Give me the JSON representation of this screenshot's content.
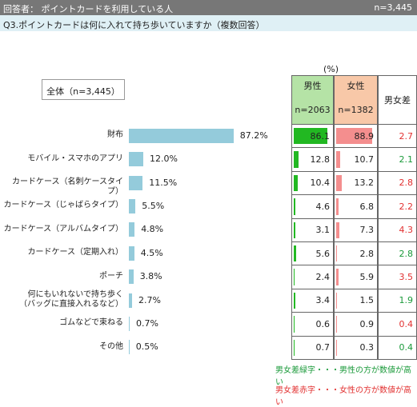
{
  "header": {
    "respondents": "回答者： ポイントカードを利用している人",
    "n": "n=3,445"
  },
  "question": "Q3.ポイントカードは何に入れて持ち歩いていますか（複数回答）",
  "unit": "(%)",
  "total_label": "全体（n=3,445）",
  "table_headers": {
    "male": "男性",
    "male_n": "n=2063",
    "female": "女性",
    "female_n": "n=1382",
    "diff": "男女差"
  },
  "colors": {
    "total_bar": "#94cbdb",
    "male_bar": "#22b822",
    "female_bar": "#f48e8e",
    "diff_green": "#1a9a3a",
    "diff_red": "#e23030"
  },
  "chart_data": {
    "type": "bar",
    "categories": [
      "財布",
      "モバイル・スマホのアプリ",
      "カードケース（名刺ケースタイプ）",
      "カードケース（じゃばらタイプ）",
      "カードケース（アルバムタイプ）",
      "カードケース（定期入れ）",
      "ポーチ",
      "何にもいれないで持ち歩く（バッグに直接入れるなど）",
      "ゴムなどで束ねる",
      "その他"
    ],
    "category_lines": [
      [
        "財布"
      ],
      [
        "モバイル・スマホのアプリ"
      ],
      [
        "カードケース（名刺ケースタイプ）"
      ],
      [
        "カードケース（じゃばらタイプ）"
      ],
      [
        "カードケース（アルバムタイプ）"
      ],
      [
        "カードケース（定期入れ）"
      ],
      [
        "ポーチ"
      ],
      [
        "何にもいれないで持ち歩く",
        "（バッグに直接入れるなど）"
      ],
      [
        "ゴムなどで束ねる"
      ],
      [
        "その他"
      ]
    ],
    "values": [
      87.2,
      12.0,
      11.5,
      5.5,
      4.8,
      4.5,
      3.8,
      2.7,
      0.7,
      0.5
    ],
    "value_labels": [
      "87.2%",
      "12.0%",
      "11.5%",
      "5.5%",
      "4.8%",
      "4.5%",
      "3.8%",
      "2.7%",
      "0.7%",
      "0.5%"
    ],
    "male": [
      86.1,
      12.8,
      10.4,
      4.6,
      3.1,
      5.6,
      2.4,
      3.4,
      0.6,
      0.7
    ],
    "male_labels": [
      "86.1",
      "12.8",
      "10.4",
      "4.6",
      "3.1",
      "5.6",
      "2.4",
      "3.4",
      "0.6",
      "0.7"
    ],
    "female": [
      88.9,
      10.7,
      13.2,
      6.8,
      7.3,
      2.8,
      5.9,
      1.5,
      0.9,
      0.3
    ],
    "female_labels": [
      "88.9",
      "10.7",
      "13.2",
      "6.8",
      "7.3",
      "2.8",
      "5.9",
      "1.5",
      "0.9",
      "0.3"
    ],
    "diff": [
      2.7,
      2.1,
      2.8,
      2.2,
      4.3,
      2.8,
      3.5,
      1.9,
      0.4,
      0.4
    ],
    "diff_labels": [
      "2.7",
      "2.1",
      "2.8",
      "2.2",
      "4.3",
      "2.8",
      "3.5",
      "1.9",
      "0.4",
      "0.4"
    ],
    "diff_color": [
      "red",
      "green",
      "red",
      "red",
      "red",
      "green",
      "red",
      "green",
      "red",
      "green"
    ]
  },
  "legend": {
    "green": "男女差緑字・・・男性の方が数値が高い",
    "red": "男女差赤字・・・女性の方が数値が高い"
  }
}
